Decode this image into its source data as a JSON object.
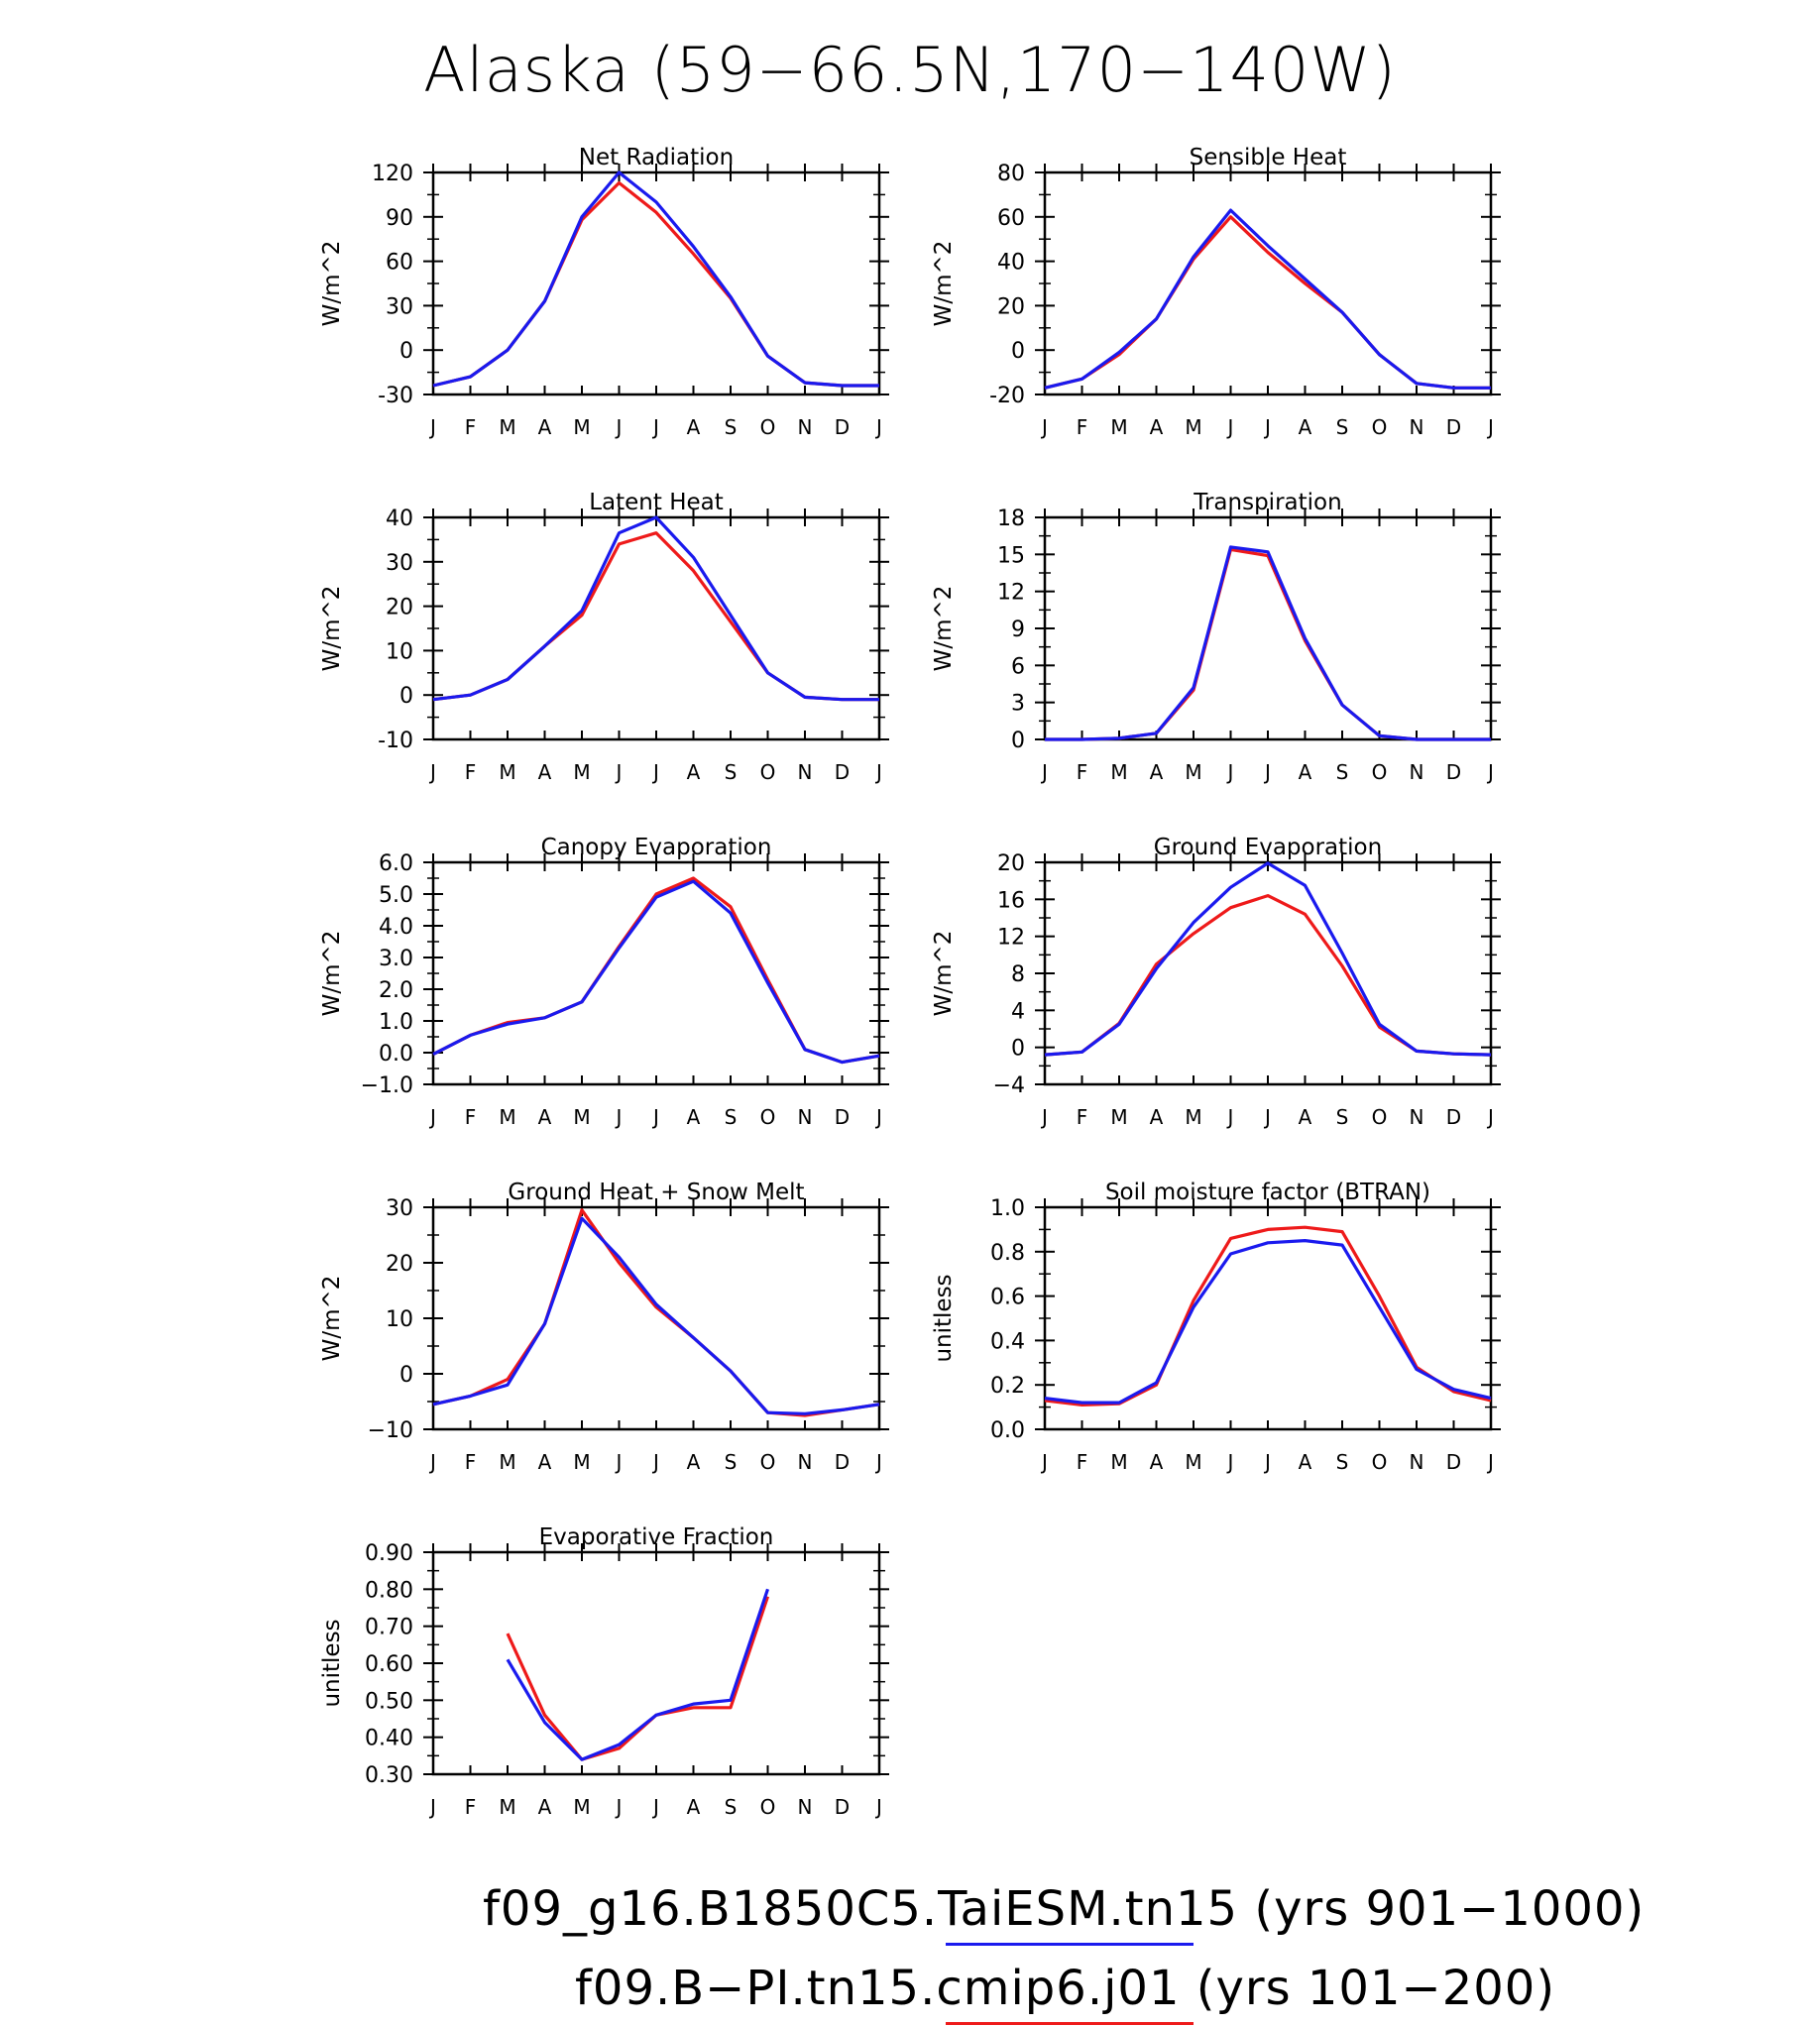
{
  "title": "Alaska (59−66.5N,170−140W)",
  "months": [
    "J",
    "F",
    "M",
    "A",
    "M",
    "J",
    "J",
    "A",
    "S",
    "O",
    "N",
    "D",
    "J"
  ],
  "colors": {
    "blue": "#1a1aee",
    "red": "#ee1a1a"
  },
  "legend": [
    {
      "text": "f09_g16.B1850C5.TaiESM.tn15 (yrs 901−1000)",
      "color": "#1a1aee"
    },
    {
      "text": "f09.B−PI.tn15.cmip6.j01 (yrs 101−200)",
      "color": "#ee1a1a"
    }
  ],
  "chart_data": [
    {
      "type": "line",
      "title": "Net Radiation",
      "ylabel": "W/m^2",
      "ylim": [
        -30,
        120
      ],
      "yticks": [
        "-30",
        "0",
        "30",
        "60",
        "90",
        "120"
      ],
      "x": [
        "J",
        "F",
        "M",
        "A",
        "M",
        "J",
        "J",
        "A",
        "S",
        "O",
        "N",
        "D",
        "J"
      ],
      "series": [
        {
          "name": "f09_g16.B1850C5.TaiESM.tn15",
          "color": "blue",
          "values": [
            -24,
            -18,
            0,
            33,
            90,
            120,
            100,
            70,
            36,
            -4,
            -22,
            -24,
            -24
          ]
        },
        {
          "name": "f09.B-PI.tn15.cmip6.j01",
          "color": "red",
          "values": [
            -24,
            -18,
            0,
            33,
            88,
            113,
            93,
            65,
            35,
            -4,
            -22,
            -24,
            -24
          ]
        }
      ]
    },
    {
      "type": "line",
      "title": "Sensible Heat",
      "ylabel": "W/m^2",
      "ylim": [
        -20,
        80
      ],
      "yticks": [
        "-20",
        "0",
        "20",
        "40",
        "60",
        "80"
      ],
      "x": [
        "J",
        "F",
        "M",
        "A",
        "M",
        "J",
        "J",
        "A",
        "S",
        "O",
        "N",
        "D",
        "J"
      ],
      "series": [
        {
          "name": "f09_g16.B1850C5.TaiESM.tn15",
          "color": "blue",
          "values": [
            -17,
            -13,
            -1,
            14,
            42,
            63,
            47,
            32,
            17,
            -2,
            -15,
            -17,
            -17
          ]
        },
        {
          "name": "f09.B-PI.tn15.cmip6.j01",
          "color": "red",
          "values": [
            -17,
            -13,
            -2,
            14,
            41,
            60,
            44,
            30,
            17,
            -2,
            -15,
            -17,
            -17
          ]
        }
      ]
    },
    {
      "type": "line",
      "title": "Latent Heat",
      "ylabel": "W/m^2",
      "ylim": [
        -10,
        40
      ],
      "yticks": [
        "-10",
        "0",
        "10",
        "20",
        "30",
        "40"
      ],
      "x": [
        "J",
        "F",
        "M",
        "A",
        "M",
        "J",
        "J",
        "A",
        "S",
        "O",
        "N",
        "D",
        "J"
      ],
      "series": [
        {
          "name": "f09_g16.B1850C5.TaiESM.tn15",
          "color": "blue",
          "values": [
            -1,
            0,
            3.5,
            11,
            19,
            36.5,
            40,
            31,
            18,
            5,
            -0.5,
            -1,
            -1
          ]
        },
        {
          "name": "f09.B-PI.tn15.cmip6.j01",
          "color": "red",
          "values": [
            -1,
            0,
            3.5,
            11,
            18,
            34,
            36.5,
            28,
            16.5,
            5,
            -0.5,
            -1,
            -1
          ]
        }
      ]
    },
    {
      "type": "line",
      "title": "Transpiration",
      "ylabel": "W/m^2",
      "ylim": [
        0,
        18
      ],
      "yticks": [
        "0",
        "3",
        "6",
        "9",
        "12",
        "15",
        "18"
      ],
      "x": [
        "J",
        "F",
        "M",
        "A",
        "M",
        "J",
        "J",
        "A",
        "S",
        "O",
        "N",
        "D",
        "J"
      ],
      "series": [
        {
          "name": "f09_g16.B1850C5.TaiESM.tn15",
          "color": "blue",
          "values": [
            0,
            0,
            0.1,
            0.5,
            4.2,
            15.6,
            15.2,
            8.2,
            2.8,
            0.3,
            0,
            0,
            0
          ]
        },
        {
          "name": "f09.B-PI.tn15.cmip6.j01",
          "color": "red",
          "values": [
            0,
            0,
            0.1,
            0.5,
            4.0,
            15.4,
            14.9,
            8.0,
            2.8,
            0.3,
            0,
            0,
            0
          ]
        }
      ]
    },
    {
      "type": "line",
      "title": "Canopy Evaporation",
      "ylabel": "W/m^2",
      "ylim": [
        -1,
        6
      ],
      "yticks": [
        "−1.0",
        "0.0",
        "1.0",
        "2.0",
        "3.0",
        "4.0",
        "5.0",
        "6.0"
      ],
      "x": [
        "J",
        "F",
        "M",
        "A",
        "M",
        "J",
        "J",
        "A",
        "S",
        "O",
        "N",
        "D",
        "J"
      ],
      "series": [
        {
          "name": "f09_g16.B1850C5.TaiESM.tn15",
          "color": "blue",
          "values": [
            -0.05,
            0.55,
            0.9,
            1.1,
            1.6,
            3.3,
            4.9,
            5.4,
            4.4,
            2.2,
            0.1,
            -0.3,
            -0.1
          ]
        },
        {
          "name": "f09.B-PI.tn15.cmip6.j01",
          "color": "red",
          "values": [
            -0.05,
            0.55,
            0.95,
            1.1,
            1.6,
            3.35,
            5.0,
            5.5,
            4.6,
            2.3,
            0.1,
            -0.3,
            -0.1
          ]
        }
      ]
    },
    {
      "type": "line",
      "title": "Ground Evaporation",
      "ylabel": "W/m^2",
      "ylim": [
        -4,
        20
      ],
      "yticks": [
        "−4",
        "0",
        "4",
        "8",
        "12",
        "16",
        "20"
      ],
      "x": [
        "J",
        "F",
        "M",
        "A",
        "M",
        "J",
        "J",
        "A",
        "S",
        "O",
        "N",
        "D",
        "J"
      ],
      "series": [
        {
          "name": "f09_g16.B1850C5.TaiESM.tn15",
          "color": "blue",
          "values": [
            -0.8,
            -0.5,
            2.5,
            8.5,
            13.5,
            17.3,
            19.9,
            17.5,
            10.2,
            2.5,
            -0.4,
            -0.7,
            -0.8
          ]
        },
        {
          "name": "f09.B-PI.tn15.cmip6.j01",
          "color": "red",
          "values": [
            -0.8,
            -0.5,
            2.6,
            9.0,
            12.3,
            15.1,
            16.4,
            14.4,
            8.8,
            2.2,
            -0.4,
            -0.7,
            -0.8
          ]
        }
      ]
    },
    {
      "type": "line",
      "title": "Ground Heat + Snow Melt",
      "ylabel": "W/m^2",
      "ylim": [
        -10,
        30
      ],
      "yticks": [
        "−10",
        "0",
        "10",
        "20",
        "30"
      ],
      "x": [
        "J",
        "F",
        "M",
        "A",
        "M",
        "J",
        "J",
        "A",
        "S",
        "O",
        "N",
        "D",
        "J"
      ],
      "series": [
        {
          "name": "f09_g16.B1850C5.TaiESM.tn15",
          "color": "blue",
          "values": [
            -5.5,
            -4,
            -2,
            9,
            28,
            21,
            12.5,
            6.5,
            0.5,
            -7,
            -7.2,
            -6.5,
            -5.5
          ]
        },
        {
          "name": "f09.B-PI.tn15.cmip6.j01",
          "color": "red",
          "values": [
            -5.5,
            -4,
            -1,
            9,
            29.5,
            20,
            12,
            6.5,
            0.5,
            -7,
            -7.5,
            -6.5,
            -5.5
          ]
        }
      ]
    },
    {
      "type": "line",
      "title": "Soil moisture factor (BTRAN)",
      "ylabel": "unitless",
      "ylim": [
        0,
        1
      ],
      "yticks": [
        "0.0",
        "0.2",
        "0.4",
        "0.6",
        "0.8",
        "1.0"
      ],
      "x": [
        "J",
        "F",
        "M",
        "A",
        "M",
        "J",
        "J",
        "A",
        "S",
        "O",
        "N",
        "D",
        "J"
      ],
      "series": [
        {
          "name": "f09_g16.B1850C5.TaiESM.tn15",
          "color": "blue",
          "values": [
            0.14,
            0.12,
            0.12,
            0.21,
            0.55,
            0.79,
            0.84,
            0.85,
            0.83,
            0.55,
            0.27,
            0.18,
            0.14
          ]
        },
        {
          "name": "f09.B-PI.tn15.cmip6.j01",
          "color": "red",
          "values": [
            0.13,
            0.11,
            0.115,
            0.2,
            0.58,
            0.86,
            0.9,
            0.91,
            0.89,
            0.6,
            0.28,
            0.17,
            0.13
          ]
        }
      ]
    },
    {
      "type": "line",
      "title": "Evaporative Fraction",
      "ylabel": "unitless",
      "ylim": [
        0.3,
        0.9
      ],
      "yticks": [
        "0.30",
        "0.40",
        "0.50",
        "0.60",
        "0.70",
        "0.80",
        "0.90"
      ],
      "x": [
        "J",
        "F",
        "M",
        "A",
        "M",
        "J",
        "J",
        "A",
        "S",
        "O",
        "N",
        "D",
        "J"
      ],
      "series": [
        {
          "name": "f09_g16.B1850C5.TaiESM.tn15",
          "color": "blue",
          "values": [
            null,
            null,
            0.61,
            0.44,
            0.34,
            0.38,
            0.46,
            0.49,
            0.5,
            0.8,
            null,
            null,
            null
          ]
        },
        {
          "name": "f09.B-PI.tn15.cmip6.j01",
          "color": "red",
          "values": [
            null,
            null,
            0.68,
            0.46,
            0.34,
            0.37,
            0.46,
            0.48,
            0.48,
            0.78,
            null,
            null,
            null
          ]
        }
      ]
    }
  ]
}
